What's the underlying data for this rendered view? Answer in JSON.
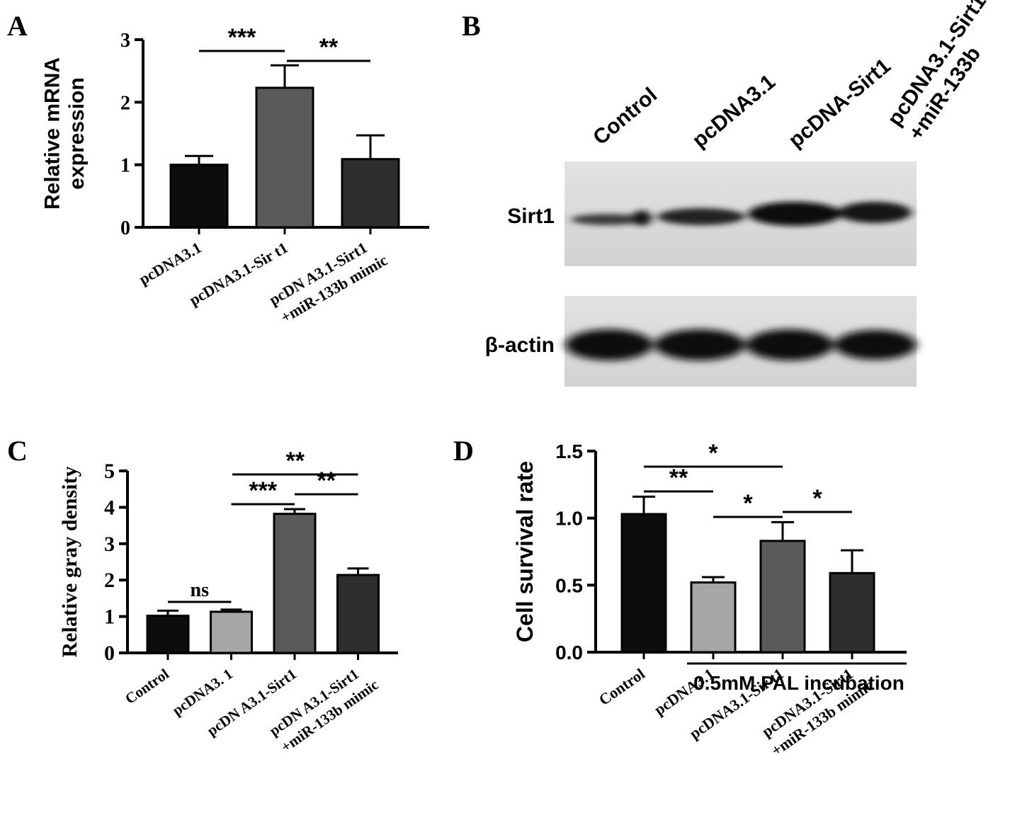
{
  "panels": {
    "A": {
      "letter": "A",
      "chart_data": {
        "type": "bar",
        "categories": [
          [
            "pcDNA3.1"
          ],
          [
            "pcDNA3.1-Sir t1"
          ],
          [
            "pcDN A3.1-Sirt1",
            "+miR-133b mimic"
          ]
        ],
        "values": [
          1.0,
          2.23,
          1.09
        ],
        "errors": [
          0.14,
          0.36,
          0.38
        ],
        "colors": [
          "#0d0d0d",
          "#5a5a5a",
          "#2e2e2e"
        ],
        "ylabel": [
          "Relative mRNA",
          "expression"
        ],
        "ylim": [
          0,
          3
        ],
        "yticks": [
          "0",
          "1",
          "2",
          "3"
        ],
        "significance": [
          {
            "from": 0,
            "to": 1,
            "label": "***"
          },
          {
            "from": 1,
            "to": 2,
            "label": "**"
          }
        ]
      }
    },
    "B": {
      "letter": "B",
      "lanes": [
        "Control",
        "pcDNA3.1",
        "pcDNA-Sirt1",
        "pcDNA3.1-Sirt1",
        "+miR-133b"
      ],
      "rows": [
        "Sirt1",
        "β-actin"
      ]
    },
    "C": {
      "letter": "C",
      "chart_data": {
        "type": "bar",
        "categories": [
          [
            "Control"
          ],
          [
            "pcDNA3. 1"
          ],
          [
            "pcDN A3.1-Sirt1"
          ],
          [
            "pcDN A3.1-Sirt1",
            "+miR-133b mimic"
          ]
        ],
        "values": [
          1.02,
          1.13,
          3.82,
          2.14
        ],
        "errors": [
          0.14,
          0.06,
          0.13,
          0.18
        ],
        "colors": [
          "#0d0d0d",
          "#a6a6a6",
          "#5a5a5a",
          "#2e2e2e"
        ],
        "ylabel": [
          "Relative gray density"
        ],
        "ylim": [
          0,
          5
        ],
        "yticks": [
          "0",
          "1",
          "2",
          "3",
          "4",
          "5"
        ],
        "significance": [
          {
            "from": 0,
            "to": 1,
            "label": "ns"
          },
          {
            "from": 2,
            "to": 3,
            "label": "**"
          },
          {
            "from": 1,
            "to": 2,
            "label": "***"
          },
          {
            "from": 2,
            "to": 3,
            "label": "**"
          }
        ]
      }
    },
    "D": {
      "letter": "D",
      "group_label": "0.5mM PAL incubation",
      "chart_data": {
        "type": "bar",
        "categories": [
          [
            "Control"
          ],
          [
            "pcDNA3.1"
          ],
          [
            "pcDNA3.1-Sir t1"
          ],
          [
            "pcDNA3.1-Sirt1",
            "+miR-133b  mimic"
          ]
        ],
        "values": [
          1.03,
          0.52,
          0.83,
          0.59
        ],
        "errors": [
          0.13,
          0.04,
          0.14,
          0.17
        ],
        "colors": [
          "#0d0d0d",
          "#a6a6a6",
          "#5a5a5a",
          "#2e2e2e"
        ],
        "ylabel": [
          "Cell survival rate"
        ],
        "ylim": [
          0,
          1.5
        ],
        "yticks": [
          "0.0",
          "0.5",
          "1.0",
          "1.5"
        ],
        "significance": [
          {
            "from": 0,
            "to": 2,
            "label": "*"
          },
          {
            "from": 0,
            "to": 1,
            "label": "**"
          },
          {
            "from": 1,
            "to": 2,
            "label": "*"
          },
          {
            "from": 2,
            "to": 3,
            "label": "*"
          }
        ]
      }
    }
  }
}
